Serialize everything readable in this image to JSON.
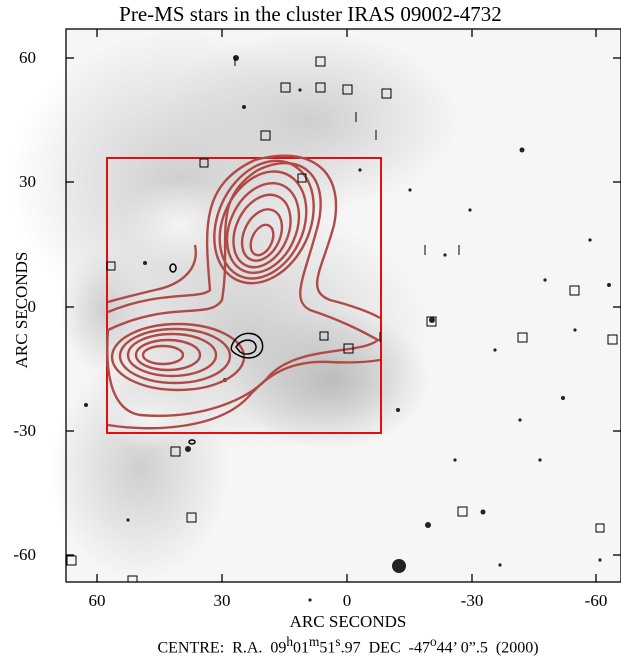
{
  "title": "Pre-MS stars in the cluster IRAS 09002-4732",
  "xlabel": "ARC SECONDS",
  "ylabel": "ARC SECONDS",
  "x_ticks": [
    "60",
    "30",
    "0",
    "-30",
    "-60"
  ],
  "y_ticks": [
    "60",
    "30",
    "0",
    "-30",
    "-60"
  ],
  "centre": {
    "prefix": "CENTRE:  R.A.  09",
    "ra_h_unit": "h",
    "ra_min": "01",
    "ra_m_unit": "m",
    "ra_sec_int": "51",
    "ra_sec_frac": "97",
    "dec_label": "  DEC  -47",
    "dec_deg_unit": "o",
    "dec_min": "44",
    "dec_sec": " 0",
    "dec_sec_frac": "5",
    "epoch": "  (2000)"
  },
  "colors": {
    "background_image": "#e2e2e2",
    "red_box": "#e01010",
    "red_contours": "#b04a46",
    "black_contours": "#000000",
    "marker_boxes": "#000000"
  }
}
